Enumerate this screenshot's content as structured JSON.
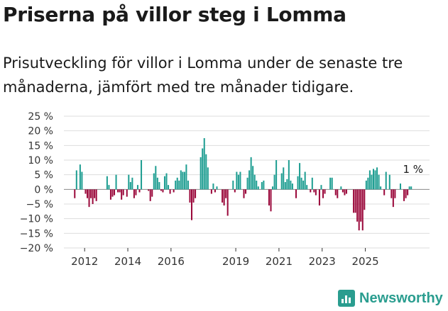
{
  "header": {
    "title": "Priserna på villor steg i Lomma",
    "subtitle": "Prisutveckling för villor i Lomma under de senaste tre månaderna, jämfört med tre månader tidigare."
  },
  "brand": {
    "name": "Newsworthy",
    "icon": "newsworthy-logo-icon"
  },
  "colors": {
    "positive": "#1f9e92",
    "negative": "#9b0a3c",
    "grid": "#dddddd"
  },
  "chart_data": {
    "type": "bar",
    "title": "Priserna på villor steg i Lomma",
    "ylabel": "",
    "xlabel": "",
    "ylim": [
      -20,
      25
    ],
    "yticks": [
      25,
      20,
      15,
      10,
      5,
      0,
      -5,
      -10,
      -15,
      -20
    ],
    "ytick_labels": [
      "25 %",
      "20 %",
      "15 %",
      "10 %",
      "5 %",
      "0 %",
      "−5 %",
      "−10 %",
      "−15 %",
      "−20 %"
    ],
    "xticks": [
      2012,
      2014,
      2016,
      2019,
      2021,
      2023,
      2025
    ],
    "xtick_labels": [
      "2012",
      "2014",
      "2016",
      "2019",
      "2021",
      "2023",
      "2025"
    ],
    "grid": true,
    "start": {
      "year": 2012,
      "month": 1
    },
    "annotation": "1 %",
    "values": [
      -3,
      6.5,
      0,
      8.5,
      6,
      0,
      -1.5,
      -3,
      -6,
      -3,
      -5,
      -3,
      -4,
      0,
      0,
      0,
      0,
      0,
      4.5,
      1.5,
      -3.5,
      -2.5,
      -2,
      5,
      -1,
      -1,
      -3.5,
      -2,
      0,
      -2.5,
      5,
      2.5,
      4,
      -3,
      -2,
      1.5,
      -1,
      10,
      0,
      0,
      0,
      -0.5,
      -4,
      -2.5,
      5.5,
      8,
      4,
      2.5,
      -0.5,
      -1,
      4.5,
      5.5,
      1.5,
      -1.5,
      0,
      -1,
      3,
      4,
      3,
      6.5,
      6,
      6,
      8.5,
      3,
      -4.5,
      -10.5,
      -4.5,
      -3,
      0,
      0,
      11,
      14,
      17.5,
      12,
      7.5,
      0,
      -1.5,
      2,
      -1,
      1,
      0,
      0,
      -4.5,
      -5.5,
      -3,
      -9,
      0,
      0,
      3,
      -1,
      6,
      5,
      6,
      0,
      -3,
      -1.5,
      4,
      6.5,
      11,
      8,
      5,
      3,
      1,
      0,
      2.5,
      3,
      0,
      0,
      -5.5,
      -7.5,
      1,
      5,
      10,
      0,
      0,
      5.5,
      7.5,
      2.5,
      3.5,
      10,
      3,
      2,
      0,
      -3,
      4.5,
      9,
      4,
      3,
      6,
      1.5,
      0,
      -1,
      4,
      -1,
      -2,
      0,
      -5.5,
      1.5,
      -3,
      -1.5,
      0,
      0,
      4,
      4,
      0,
      -2,
      -3,
      0,
      1,
      -1,
      -2,
      -1.5,
      0,
      0,
      0,
      -8,
      -8,
      -11,
      -14,
      -11,
      -14,
      -7,
      3,
      4,
      6.5,
      5,
      7,
      6.5,
      7.5,
      5,
      1,
      0,
      -2,
      6,
      0,
      5,
      -3,
      -6,
      -3,
      0,
      0,
      2,
      0,
      -4,
      -3,
      -2,
      1,
      1,
      0
    ]
  }
}
